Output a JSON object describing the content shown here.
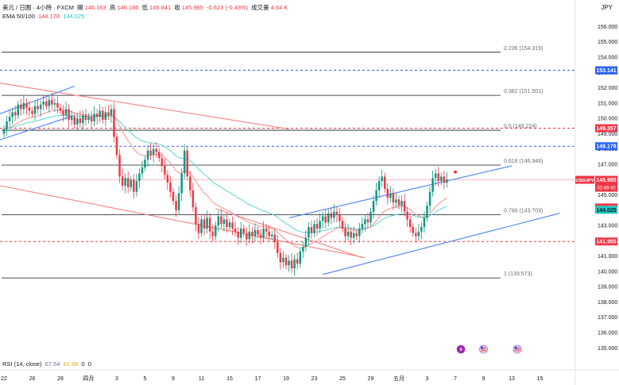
{
  "header": {
    "symbol": "美元 / 日圓 · 4小時 · FXCM",
    "open_label": "開",
    "open": "146.163",
    "high_label": "高",
    "high": "146.186",
    "low_label": "低",
    "low": "145.841",
    "close_label": "收",
    "close": "145.985",
    "change": "-0.623 (-0.43%)",
    "volume_label": "成交量",
    "volume": "4.64 K",
    "ema_label": "EMA 50/100",
    "ema50": "144.178",
    "ema100": "144.025",
    "rsi_label": "RSI (14, close)",
    "rsi_a": "67.54",
    "rsi_b": "61.99",
    "rsi_c": "0",
    "rsi_d": "0",
    "currency": "JPY"
  },
  "colors": {
    "up": "#089981",
    "down": "#f23645",
    "ema50": "#f7908f",
    "ema100": "#5ad8d5",
    "channel": "#5b8cf0",
    "downtrend": "#f28b8b",
    "fib": "#131722",
    "dashed_red": "#f23645",
    "dashed_blue": "#2962ff"
  },
  "chart_data": {
    "type": "candlestick",
    "ylim": [
      134.6,
      156.8
    ],
    "y_ticks": [
      "156.000",
      "155.000",
      "154.000",
      "153.000",
      "152.000",
      "151.000",
      "150.000",
      "149.000",
      "148.000",
      "147.000",
      "146.000",
      "145.000",
      "144.000",
      "143.000",
      "142.000",
      "141.000",
      "140.000",
      "139.000",
      "138.000",
      "137.000",
      "136.000",
      "135.000"
    ],
    "x_ticks": [
      {
        "label": "22",
        "bar": 0
      },
      {
        "label": "26",
        "bar": 10
      },
      {
        "label": "28",
        "bar": 20
      },
      {
        "label": "四月",
        "bar": 30
      },
      {
        "label": "3",
        "bar": 40
      },
      {
        "label": "5",
        "bar": 50
      },
      {
        "label": "9",
        "bar": 60
      },
      {
        "label": "11",
        "bar": 70
      },
      {
        "label": "15",
        "bar": 80
      },
      {
        "label": "17",
        "bar": 90
      },
      {
        "label": "19",
        "bar": 100
      },
      {
        "label": "23",
        "bar": 110
      },
      {
        "label": "25",
        "bar": 120
      },
      {
        "label": "29",
        "bar": 130
      },
      {
        "label": "五月",
        "bar": 140
      },
      {
        "label": "3",
        "bar": 150
      },
      {
        "label": "7",
        "bar": 160
      },
      {
        "label": "9",
        "bar": 170
      },
      {
        "label": "13",
        "bar": 180
      },
      {
        "label": "15",
        "bar": 190
      }
    ],
    "fib_levels": [
      {
        "label": "0.236 (154.319)",
        "value": 154.319
      },
      {
        "label": "0.382 (151.501)",
        "value": 151.501
      },
      {
        "label": "0.5 (149.224)",
        "value": 149.224
      },
      {
        "label": "0.618 (146.946)",
        "value": 146.946
      },
      {
        "label": "0.786 (143.709)",
        "value": 143.709
      },
      {
        "label": "1 (139.573)",
        "value": 139.573
      }
    ],
    "price_labels": [
      {
        "value": "153.141",
        "y": 153.141,
        "style": "blue"
      },
      {
        "value": "149.357",
        "y": 149.357,
        "style": "red"
      },
      {
        "value": "148.178",
        "y": 148.178,
        "style": "blue"
      },
      {
        "value": "145.985",
        "y": 145.985,
        "style": "symbol",
        "symbol": "USDJPY",
        "timer": "02:49:40"
      },
      {
        "value": "144.178",
        "y": 144.178,
        "style": "ema50"
      },
      {
        "value": "144.025",
        "y": 144.025,
        "style": "ema100"
      },
      {
        "value": "141.955",
        "y": 141.955,
        "style": "red"
      }
    ],
    "dashed_levels": [
      {
        "value": 153.141,
        "color": "blue"
      },
      {
        "value": 149.357,
        "color": "red"
      },
      {
        "value": 148.178,
        "color": "blue"
      },
      {
        "value": 141.955,
        "color": "red"
      }
    ],
    "current_price_line": 145.985,
    "closes": [
      149.3,
      149.8,
      150.1,
      150.4,
      150.2,
      150.9,
      150.6,
      151.0,
      150.7,
      150.5,
      150.3,
      150.8,
      150.6,
      150.9,
      151.1,
      150.8,
      151.2,
      150.9,
      151.0,
      150.7,
      150.5,
      150.2,
      150.6,
      149.9,
      150.1,
      149.6,
      150.0,
      149.7,
      150.2,
      149.9,
      150.1,
      149.8,
      150.3,
      150.1,
      150.5,
      149.9,
      150.4,
      150.2,
      150.6,
      148.8,
      147.6,
      146.2,
      145.6,
      146.1,
      145.5,
      146.0,
      145.2,
      145.9,
      146.4,
      146.8,
      147.3,
      147.9,
      147.6,
      148.0,
      147.8,
      147.4,
      146.9,
      146.3,
      145.8,
      145.2,
      144.6,
      144.0,
      145.1,
      146.4,
      147.9,
      146.2,
      145.3,
      144.2,
      143.1,
      142.5,
      143.4,
      142.8,
      143.5,
      142.6,
      142.3,
      143.0,
      143.6,
      143.1,
      143.4,
      142.9,
      143.2,
      142.8,
      142.6,
      142.2,
      142.8,
      142.5,
      142.1,
      142.6,
      142.3,
      142.7,
      142.4,
      142.2,
      142.8,
      142.6,
      142.3,
      142.4,
      141.9,
      141.2,
      140.6,
      140.9,
      140.4,
      140.7,
      140.2,
      140.8,
      140.5,
      141.3,
      141.6,
      142.2,
      142.9,
      142.5,
      143.1,
      142.8,
      143.3,
      143.6,
      143.2,
      143.8,
      143.5,
      143.9,
      143.7,
      143.3,
      142.8,
      142.3,
      142.6,
      142.2,
      142.5,
      142.3,
      142.8,
      143.1,
      143.4,
      143.2,
      143.9,
      144.6,
      145.3,
      145.9,
      146.2,
      145.4,
      144.8,
      145.1,
      144.5,
      144.7,
      144.3,
      144.6,
      143.9,
      143.4,
      142.9,
      142.5,
      142.3,
      142.6,
      142.9,
      143.5,
      144.3,
      145.2,
      146.1,
      146.4,
      145.9,
      146.2,
      145.8,
      146.0
    ]
  },
  "events": [
    {
      "name": "lightning-event-icon",
      "bar": 162
    },
    {
      "name": "us-flag-event-icon",
      "bar": 170
    },
    {
      "name": "us-flag-event-icon-2",
      "bar": 182
    }
  ]
}
